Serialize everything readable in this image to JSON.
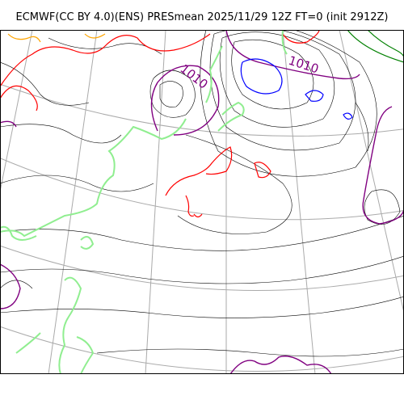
{
  "title": "ECMWF(CC BY 4.0)(ENS) PRESmean 2025/11/29 12Z FT=0 (init 2912Z)",
  "isobar_labels": [
    "1010",
    "1010"
  ],
  "colors": {
    "isobar": "#000000",
    "isobar_1010": "#800080",
    "high_1020": "#ff0000",
    "high_1024": "#ffa500",
    "low_1000": "#0000ff",
    "low_996": "#008000",
    "coastline": "#90ee90",
    "graticule": "#aaaaaa",
    "frame": "#000000",
    "background": "#ffffff"
  }
}
